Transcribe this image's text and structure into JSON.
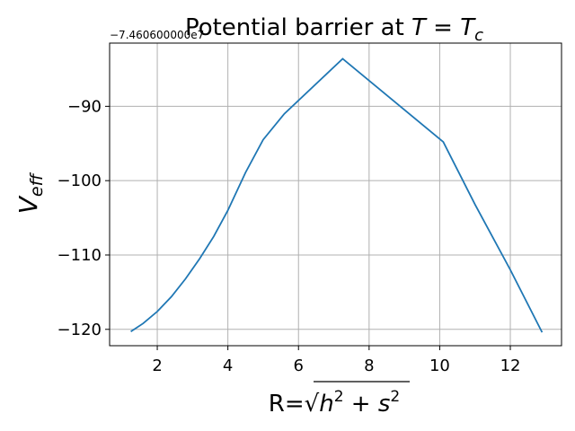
{
  "chart_data": {
    "type": "line",
    "title": "Potential barrier at T = Tc",
    "title_parts": {
      "prefix": "Potential barrier at ",
      "T1": "T",
      "eq": " = ",
      "T2": "T",
      "sub": "c"
    },
    "xlabel": "R=√(h² + s²)",
    "xlabel_parts": {
      "prefix": "R=",
      "radical": "√",
      "h": "h",
      "h_sup": "2",
      "plus": " + ",
      "s": "s",
      "s_sup": "2"
    },
    "ylabel": "V_eff",
    "ylabel_parts": {
      "V": "V",
      "sub": "eff"
    },
    "y_offset_label": "−7.460600000e7",
    "xlim": [
      0.65,
      13.45
    ],
    "ylim": [
      -122.2,
      -81.5
    ],
    "xticks": [
      2,
      4,
      6,
      8,
      10,
      12
    ],
    "xtick_labels": [
      "2",
      "4",
      "6",
      "8",
      "10",
      "12"
    ],
    "yticks": [
      -90,
      -100,
      -110,
      -120
    ],
    "ytick_labels": [
      "−90",
      "−100",
      "−110",
      "−120"
    ],
    "grid": true,
    "line_color": "#1f77b4",
    "series": [
      {
        "x": [
          1.25,
          1.6,
          2.0,
          2.4,
          2.8,
          3.2,
          3.6,
          4.0,
          4.5,
          5.0,
          5.6,
          7.25,
          10.1,
          11.0,
          12.0,
          12.9
        ],
        "y": [
          -120.3,
          -119.2,
          -117.6,
          -115.6,
          -113.2,
          -110.5,
          -107.5,
          -104.0,
          -98.9,
          -94.5,
          -91.0,
          -83.6,
          -94.8,
          -103.2,
          -112.0,
          -120.4
        ]
      }
    ]
  }
}
